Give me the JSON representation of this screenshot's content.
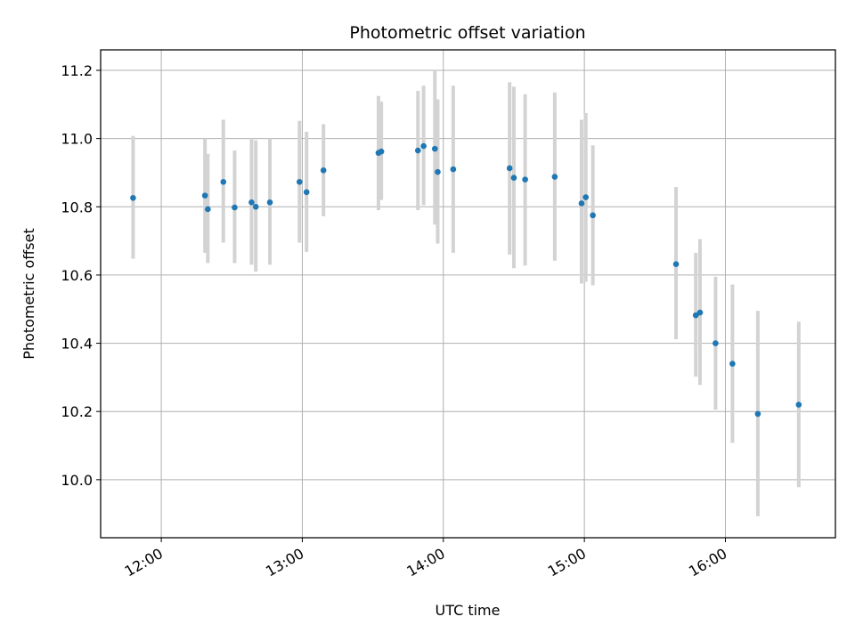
{
  "chart_data": {
    "type": "scatter",
    "title": "Photometric offset variation",
    "xlabel": "UTC time",
    "ylabel": "Photometric offset",
    "grid": true,
    "xlim_hours": [
      11.57,
      16.78
    ],
    "ylim": [
      9.83,
      11.26
    ],
    "xticks": [
      {
        "value": 12.0,
        "label": "12:00"
      },
      {
        "value": 13.0,
        "label": "13:00"
      },
      {
        "value": 14.0,
        "label": "14:00"
      },
      {
        "value": 15.0,
        "label": "15:00"
      },
      {
        "value": 16.0,
        "label": "16:00"
      }
    ],
    "yticks": [
      {
        "value": 10.0,
        "label": "10.0"
      },
      {
        "value": 10.2,
        "label": "10.2"
      },
      {
        "value": 10.4,
        "label": "10.4"
      },
      {
        "value": 10.6,
        "label": "10.6"
      },
      {
        "value": 10.8,
        "label": "10.8"
      },
      {
        "value": 11.0,
        "label": "11.0"
      },
      {
        "value": 11.2,
        "label": "11.2"
      }
    ],
    "marker_color": "#1f77b4",
    "errorbar_color": "#d3d3d3",
    "points": [
      {
        "t": 11.8,
        "y": 10.826,
        "lo": 10.648,
        "hi": 11.008
      },
      {
        "t": 12.31,
        "y": 10.833,
        "lo": 10.665,
        "hi": 11.0
      },
      {
        "t": 12.33,
        "y": 10.793,
        "lo": 10.635,
        "hi": 10.955
      },
      {
        "t": 12.44,
        "y": 10.873,
        "lo": 10.695,
        "hi": 11.055
      },
      {
        "t": 12.52,
        "y": 10.798,
        "lo": 10.635,
        "hi": 10.965
      },
      {
        "t": 12.64,
        "y": 10.813,
        "lo": 10.63,
        "hi": 11.0
      },
      {
        "t": 12.67,
        "y": 10.8,
        "lo": 10.61,
        "hi": 10.995
      },
      {
        "t": 12.77,
        "y": 10.813,
        "lo": 10.63,
        "hi": 11.0
      },
      {
        "t": 12.98,
        "y": 10.873,
        "lo": 10.695,
        "hi": 11.052
      },
      {
        "t": 13.03,
        "y": 10.843,
        "lo": 10.668,
        "hi": 11.02
      },
      {
        "t": 13.15,
        "y": 10.907,
        "lo": 10.772,
        "hi": 11.042
      },
      {
        "t": 13.54,
        "y": 10.958,
        "lo": 10.79,
        "hi": 11.125
      },
      {
        "t": 13.56,
        "y": 10.962,
        "lo": 10.82,
        "hi": 11.108
      },
      {
        "t": 13.82,
        "y": 10.965,
        "lo": 10.79,
        "hi": 11.14
      },
      {
        "t": 13.86,
        "y": 10.978,
        "lo": 10.805,
        "hi": 11.155
      },
      {
        "t": 13.94,
        "y": 10.97,
        "lo": 10.748,
        "hi": 11.2
      },
      {
        "t": 13.96,
        "y": 10.902,
        "lo": 10.692,
        "hi": 11.115
      },
      {
        "t": 14.07,
        "y": 10.91,
        "lo": 10.665,
        "hi": 11.155
      },
      {
        "t": 14.47,
        "y": 10.913,
        "lo": 10.66,
        "hi": 11.165
      },
      {
        "t": 14.5,
        "y": 10.885,
        "lo": 10.62,
        "hi": 11.152
      },
      {
        "t": 14.58,
        "y": 10.88,
        "lo": 10.628,
        "hi": 11.13
      },
      {
        "t": 14.79,
        "y": 10.888,
        "lo": 10.642,
        "hi": 11.135
      },
      {
        "t": 14.98,
        "y": 10.81,
        "lo": 10.575,
        "hi": 11.055
      },
      {
        "t": 15.01,
        "y": 10.828,
        "lo": 10.58,
        "hi": 11.075
      },
      {
        "t": 15.06,
        "y": 10.775,
        "lo": 10.57,
        "hi": 10.98
      },
      {
        "t": 15.65,
        "y": 10.632,
        "lo": 10.412,
        "hi": 10.858
      },
      {
        "t": 15.79,
        "y": 10.482,
        "lo": 10.302,
        "hi": 10.665
      },
      {
        "t": 15.82,
        "y": 10.49,
        "lo": 10.278,
        "hi": 10.705
      },
      {
        "t": 15.93,
        "y": 10.4,
        "lo": 10.205,
        "hi": 10.595
      },
      {
        "t": 16.05,
        "y": 10.34,
        "lo": 10.108,
        "hi": 10.572
      },
      {
        "t": 16.23,
        "y": 10.193,
        "lo": 9.893,
        "hi": 10.495
      },
      {
        "t": 16.52,
        "y": 10.22,
        "lo": 9.978,
        "hi": 10.463
      }
    ]
  }
}
